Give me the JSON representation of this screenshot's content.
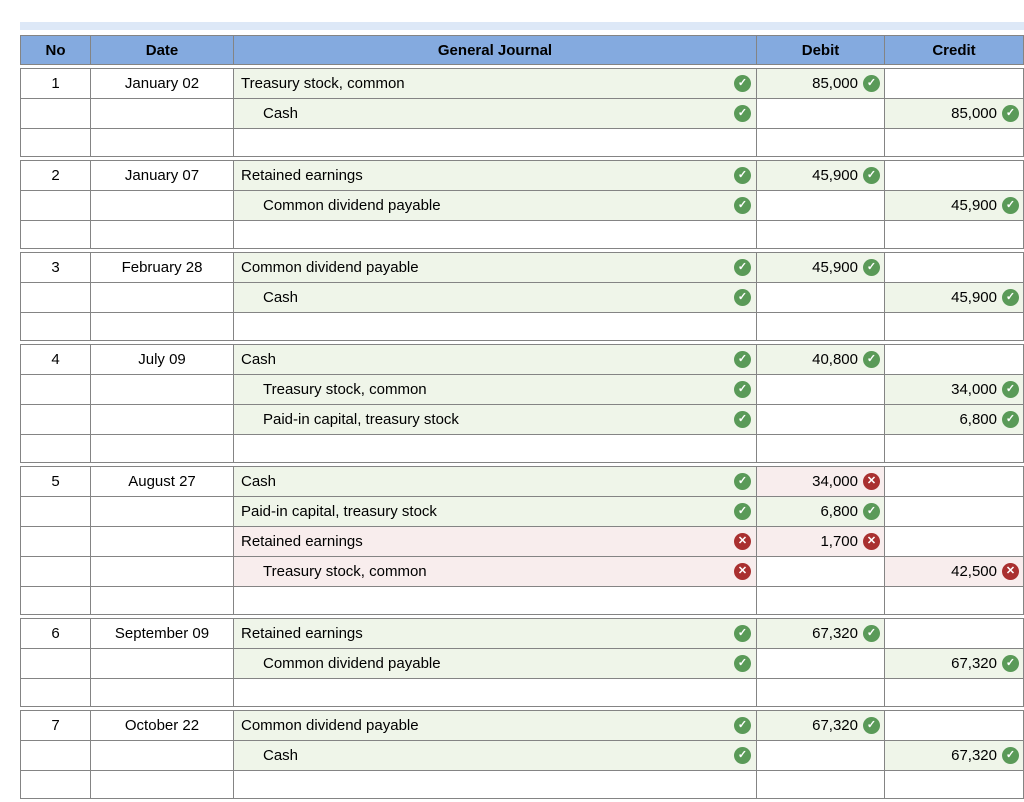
{
  "colors": {
    "header_bg": "#84aadf",
    "border": "#848484",
    "top_strip": "#dde8f7",
    "correct_green": "#5a9a58",
    "incorrect_red": "#a93030",
    "correct_cell_bg": "#eff5e9",
    "incorrect_cell_bg": "#f8eded"
  },
  "icons": {
    "correct": "✓",
    "incorrect": "✕"
  },
  "table": {
    "columns": [
      "No",
      "Date",
      "General Journal",
      "Debit",
      "Credit"
    ]
  },
  "entries": [
    {
      "no": "1",
      "date": "January 02",
      "lines": [
        {
          "account": "Treasury stock, common",
          "indent": false,
          "account_status": "correct",
          "debit": {
            "value": "85,000",
            "status": "correct"
          },
          "credit": null
        },
        {
          "account": "Cash",
          "indent": true,
          "account_status": "correct",
          "debit": null,
          "credit": {
            "value": "85,000",
            "status": "correct"
          }
        }
      ]
    },
    {
      "no": "2",
      "date": "January 07",
      "lines": [
        {
          "account": "Retained earnings",
          "indent": false,
          "account_status": "correct",
          "debit": {
            "value": "45,900",
            "status": "correct"
          },
          "credit": null
        },
        {
          "account": "Common dividend payable",
          "indent": true,
          "account_status": "correct",
          "debit": null,
          "credit": {
            "value": "45,900",
            "status": "correct"
          }
        }
      ]
    },
    {
      "no": "3",
      "date": "February 28",
      "lines": [
        {
          "account": "Common dividend payable",
          "indent": false,
          "account_status": "correct",
          "debit": {
            "value": "45,900",
            "status": "correct"
          },
          "credit": null
        },
        {
          "account": "Cash",
          "indent": true,
          "account_status": "correct",
          "debit": null,
          "credit": {
            "value": "45,900",
            "status": "correct"
          }
        }
      ]
    },
    {
      "no": "4",
      "date": "July 09",
      "lines": [
        {
          "account": "Cash",
          "indent": false,
          "account_status": "correct",
          "debit": {
            "value": "40,800",
            "status": "correct"
          },
          "credit": null
        },
        {
          "account": "Treasury stock, common",
          "indent": true,
          "account_status": "correct",
          "debit": null,
          "credit": {
            "value": "34,000",
            "status": "correct"
          }
        },
        {
          "account": "Paid-in capital, treasury stock",
          "indent": true,
          "account_status": "correct",
          "debit": null,
          "credit": {
            "value": "6,800",
            "status": "correct"
          }
        }
      ]
    },
    {
      "no": "5",
      "date": "August 27",
      "lines": [
        {
          "account": "Cash",
          "indent": false,
          "account_status": "correct",
          "debit": {
            "value": "34,000",
            "status": "incorrect"
          },
          "credit": null
        },
        {
          "account": "Paid-in capital, treasury stock",
          "indent": false,
          "account_status": "correct",
          "debit": {
            "value": "6,800",
            "status": "correct"
          },
          "credit": null
        },
        {
          "account": "Retained earnings",
          "indent": false,
          "account_status": "incorrect",
          "debit": {
            "value": "1,700",
            "status": "incorrect"
          },
          "credit": null
        },
        {
          "account": "Treasury stock, common",
          "indent": true,
          "account_status": "incorrect",
          "debit": null,
          "credit": {
            "value": "42,500",
            "status": "incorrect"
          }
        }
      ]
    },
    {
      "no": "6",
      "date": "September 09",
      "lines": [
        {
          "account": "Retained earnings",
          "indent": false,
          "account_status": "correct",
          "debit": {
            "value": "67,320",
            "status": "correct"
          },
          "credit": null
        },
        {
          "account": "Common dividend payable",
          "indent": true,
          "account_status": "correct",
          "debit": null,
          "credit": {
            "value": "67,320",
            "status": "correct"
          }
        }
      ]
    },
    {
      "no": "7",
      "date": "October 22",
      "lines": [
        {
          "account": "Common dividend payable",
          "indent": false,
          "account_status": "correct",
          "debit": {
            "value": "67,320",
            "status": "correct"
          },
          "credit": null
        },
        {
          "account": "Cash",
          "indent": true,
          "account_status": "correct",
          "debit": null,
          "credit": {
            "value": "67,320",
            "status": "correct"
          }
        }
      ]
    }
  ]
}
